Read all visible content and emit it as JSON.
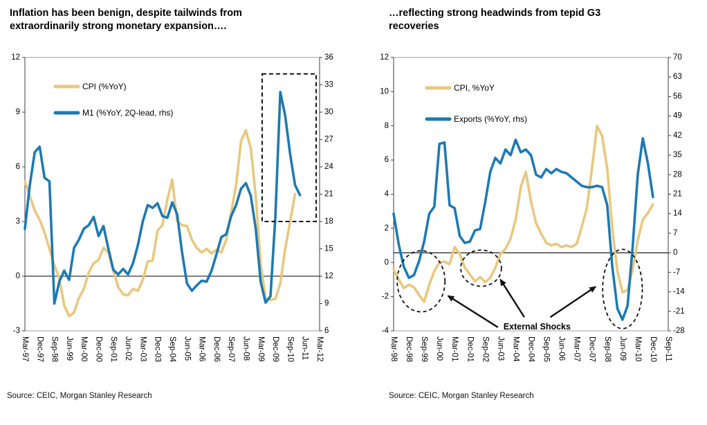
{
  "colors": {
    "cpi_line": "#E7C87F",
    "secondary_line": "#1E79B2",
    "axis": "#3d3d3d",
    "border": "#9c9c9c",
    "zero_line": "#000000",
    "annotation": "#111111",
    "text": "#000000"
  },
  "chart_data": [
    {
      "type": "line",
      "title": "Inflation has been benign, despite tailwinds from extraordinarily strong monetary expansion….",
      "source": "Source: CEIC, Morgan Stanley Research",
      "x_label_step": 3,
      "x_tick_labels": [
        "Mar-97",
        "Dec-97",
        "Sep-98",
        "Jun-99",
        "Mar-00",
        "Dec-00",
        "Sep-01",
        "Jun-02",
        "Mar-03",
        "Dec-03",
        "Sep-04",
        "Jun-05",
        "Mar-06",
        "Dec-06",
        "Sep-07",
        "Jun-08",
        "Mar-09",
        "Dec-09",
        "Sep-10",
        "Jun-11",
        "Mar-12"
      ],
      "left_axis": {
        "min": -3,
        "max": 12,
        "ticks": [
          12,
          9,
          6,
          3,
          0,
          -3
        ]
      },
      "right_axis": {
        "min": 6,
        "max": 36,
        "ticks": [
          36,
          33,
          30,
          27,
          24,
          21,
          18,
          15,
          12,
          9,
          6
        ]
      },
      "zero_line": {
        "axis": "left",
        "value": 0
      },
      "series": [
        {
          "name": "CPI (%YoY)",
          "data_name": "cpi-line",
          "axis": "left",
          "color_key": "cpi_line",
          "values": [
            5.2,
            4.4,
            3.6,
            3.1,
            2.4,
            1.5,
            0.6,
            -0.1,
            -1.6,
            -2.2,
            -2.0,
            -1.2,
            -0.7,
            0.2,
            0.7,
            0.9,
            1.55,
            1.3,
            0.3,
            -0.6,
            -1.0,
            -1.05,
            -0.7,
            -0.8,
            -0.2,
            0.8,
            0.85,
            2.5,
            2.8,
            4.2,
            5.3,
            3.0,
            2.8,
            2.75,
            2.0,
            1.55,
            1.3,
            1.5,
            1.25,
            1.45,
            1.3,
            2.0,
            3.5,
            5.0,
            7.4,
            8.0,
            7.0,
            4.4,
            0.7,
            -1.2,
            -1.3,
            -1.25,
            -0.4,
            1.5,
            3.0,
            4.5
          ]
        },
        {
          "name": "M1 (%YoY, 2Q-lead, rhs)",
          "data_name": "m1-line",
          "axis": "right",
          "color_key": "secondary_line",
          "values": [
            17.2,
            22.0,
            25.6,
            26.2,
            22.8,
            22.4,
            9.0,
            11.4,
            12.6,
            11.6,
            15.1,
            16.0,
            17.2,
            17.6,
            18.5,
            16.4,
            17.5,
            15.0,
            12.7,
            12.2,
            12.8,
            12.2,
            13.4,
            15.4,
            18.0,
            19.8,
            19.5,
            20.0,
            18.6,
            18.4,
            20.1,
            18.8,
            14.6,
            11.2,
            10.4,
            11.0,
            11.5,
            11.4,
            12.6,
            14.4,
            16.3,
            16.6,
            18.6,
            19.8,
            21.6,
            22.2,
            20.8,
            17.2,
            11.4,
            9.1,
            9.8,
            18.6,
            32.2,
            29.6,
            25.4,
            22.0,
            20.9
          ]
        }
      ],
      "annotations": {
        "highlight_box": {
          "q0": 48.3,
          "q1": 59.3,
          "rhs_top": 34.2,
          "rhs_bottom": 18.0
        }
      }
    },
    {
      "type": "line",
      "title": "…reflecting strong headwinds from tepid G3 recoveries",
      "source": "Source: CEIC, Morgan Stanley Research",
      "x_label_step": 3,
      "x_tick_labels": [
        "Mar-98",
        "Dec-98",
        "Sep-99",
        "Jun-00",
        "Mar-01",
        "Dec-01",
        "Sep-02",
        "Jun-03",
        "Mar-04",
        "Dec-04",
        "Sep-05",
        "Jun-06",
        "Mar-07",
        "Dec-07",
        "Sep-08",
        "Jun-09",
        "Mar-10",
        "Dec-10",
        "Sep-11"
      ],
      "left_axis": {
        "min": -4,
        "max": 12,
        "ticks": [
          12,
          10,
          8,
          6,
          4,
          2,
          0,
          -2,
          -4
        ]
      },
      "right_axis": {
        "min": -28,
        "max": 70,
        "ticks": [
          70,
          63,
          56,
          49,
          42,
          35,
          28,
          21,
          14,
          7,
          0,
          -7,
          -14,
          -21,
          -28
        ]
      },
      "zero_line": {
        "axis": "right",
        "value": 0
      },
      "series": [
        {
          "name": "CPI, %YoY",
          "data_name": "cpi-line",
          "axis": "left",
          "color_key": "cpi_line",
          "values": [
            -0.4,
            -1.0,
            -1.5,
            -1.3,
            -1.45,
            -1.9,
            -2.3,
            -1.3,
            -0.5,
            0.0,
            0.05,
            -0.1,
            0.9,
            0.5,
            -0.3,
            -0.7,
            -1.1,
            -0.85,
            -1.15,
            -0.9,
            -0.3,
            0.5,
            0.8,
            1.4,
            2.5,
            4.4,
            5.3,
            3.6,
            2.3,
            1.7,
            1.15,
            1.0,
            1.1,
            0.9,
            1.0,
            0.9,
            1.1,
            2.1,
            3.2,
            5.5,
            8.0,
            7.4,
            5.5,
            2.0,
            -0.5,
            -1.75,
            -1.6,
            -0.4,
            1.3,
            2.5,
            2.9,
            3.4
          ]
        },
        {
          "name": "Exports (%YoY, rhs)",
          "data_name": "exports-line",
          "axis": "right",
          "color_key": "secondary_line",
          "values": [
            14,
            3,
            -5,
            -9,
            -8,
            -3,
            4,
            14,
            16.5,
            39,
            39.5,
            17,
            16,
            6,
            3.5,
            4,
            8,
            8.5,
            18,
            29,
            34,
            32,
            37,
            35,
            40.5,
            36,
            37,
            35,
            28,
            27,
            30,
            28.5,
            30,
            29,
            28.5,
            27,
            25.5,
            24,
            23.5,
            23.5,
            24,
            23.5,
            17,
            -5,
            -20,
            -24,
            -19,
            2,
            28,
            41,
            32,
            20
          ]
        }
      ],
      "annotations": {
        "shock_label": {
          "text": "External Shocks",
          "q": 28.2,
          "lhs": -3.75
        },
        "ellipses": [
          {
            "q": 5.4,
            "lhs": -1.1,
            "rq": 4.7,
            "rlhs": 1.79
          },
          {
            "q": 17.2,
            "lhs": -0.33,
            "rq": 4.0,
            "rlhs": 1.06
          },
          {
            "q": 45.0,
            "lhs": -1.55,
            "rq": 3.9,
            "rlhs": 2.32
          }
        ],
        "arrows": [
          {
            "q1": 20.5,
            "l1": -3.79,
            "q2": 10.7,
            "l2": -1.95
          },
          {
            "q1": 25.7,
            "l1": -3.2,
            "q2": 21.0,
            "l2": -1.0
          },
          {
            "q1": 30.8,
            "l1": -3.2,
            "q2": 39.7,
            "l2": -1.42
          }
        ]
      }
    }
  ]
}
